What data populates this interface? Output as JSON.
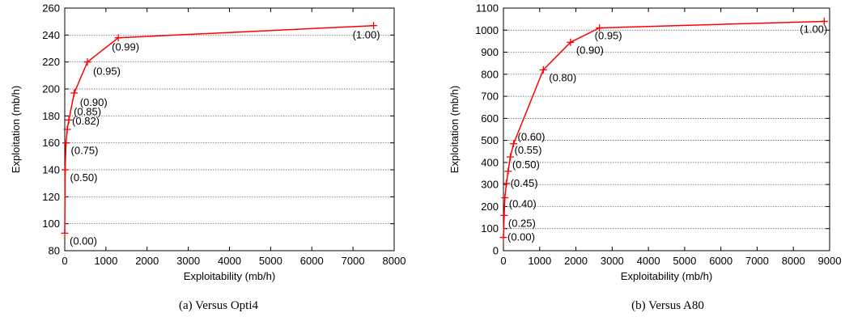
{
  "chart_data": [
    {
      "type": "line",
      "caption": "(a) Versus Opti4",
      "xlabel": "Exploitability (mb/h)",
      "ylabel": "Exploitation (mb/h)",
      "xlim": [
        0,
        8000
      ],
      "ylim": [
        80,
        260
      ],
      "xticks": [
        0,
        1000,
        2000,
        3000,
        4000,
        5000,
        6000,
        7000,
        8000
      ],
      "yticks": [
        80,
        100,
        120,
        140,
        160,
        180,
        200,
        220,
        240,
        260
      ],
      "grid": "horizontal",
      "color": "#ff0000",
      "points": [
        {
          "x": 0,
          "y": 93,
          "label": "(0.00)"
        },
        {
          "x": 10,
          "y": 140,
          "label": "(0.50)"
        },
        {
          "x": 30,
          "y": 160,
          "label": "(0.75)"
        },
        {
          "x": 60,
          "y": 170,
          "label": "(0.82)"
        },
        {
          "x": 100,
          "y": 177,
          "label": "(0.85)"
        },
        {
          "x": 230,
          "y": 197,
          "label": "(0.90)"
        },
        {
          "x": 550,
          "y": 220,
          "label": "(0.95)"
        },
        {
          "x": 1300,
          "y": 238,
          "label": "(0.99)"
        },
        {
          "x": 7500,
          "y": 247,
          "label": "(1.00)"
        }
      ]
    },
    {
      "type": "line",
      "caption": "(b) Versus A80",
      "xlabel": "Exploitability (mb/h)",
      "ylabel": "Exploitation (mb/h)",
      "xlim": [
        0,
        9000
      ],
      "ylim": [
        0,
        1100
      ],
      "xticks": [
        0,
        1000,
        2000,
        3000,
        4000,
        5000,
        6000,
        7000,
        8000,
        9000
      ],
      "yticks": [
        0,
        100,
        200,
        300,
        400,
        500,
        600,
        700,
        800,
        900,
        1000,
        1100
      ],
      "grid": "horizontal",
      "color": "#ff0000",
      "points": [
        {
          "x": 0,
          "y": 60,
          "label": "(0.00)"
        },
        {
          "x": 20,
          "y": 160,
          "label": "(0.25)"
        },
        {
          "x": 40,
          "y": 240,
          "label": "(0.40)"
        },
        {
          "x": 80,
          "y": 305,
          "label": "(0.45)"
        },
        {
          "x": 130,
          "y": 360,
          "label": "(0.50)"
        },
        {
          "x": 190,
          "y": 425,
          "label": "(0.55)"
        },
        {
          "x": 280,
          "y": 485,
          "label": "(0.60)"
        },
        {
          "x": 1100,
          "y": 820,
          "label": "(0.80)"
        },
        {
          "x": 1850,
          "y": 945,
          "label": "(0.90)"
        },
        {
          "x": 2650,
          "y": 1010,
          "label": "(0.95)"
        },
        {
          "x": 8850,
          "y": 1040,
          "label": "(1.00)"
        }
      ]
    }
  ]
}
